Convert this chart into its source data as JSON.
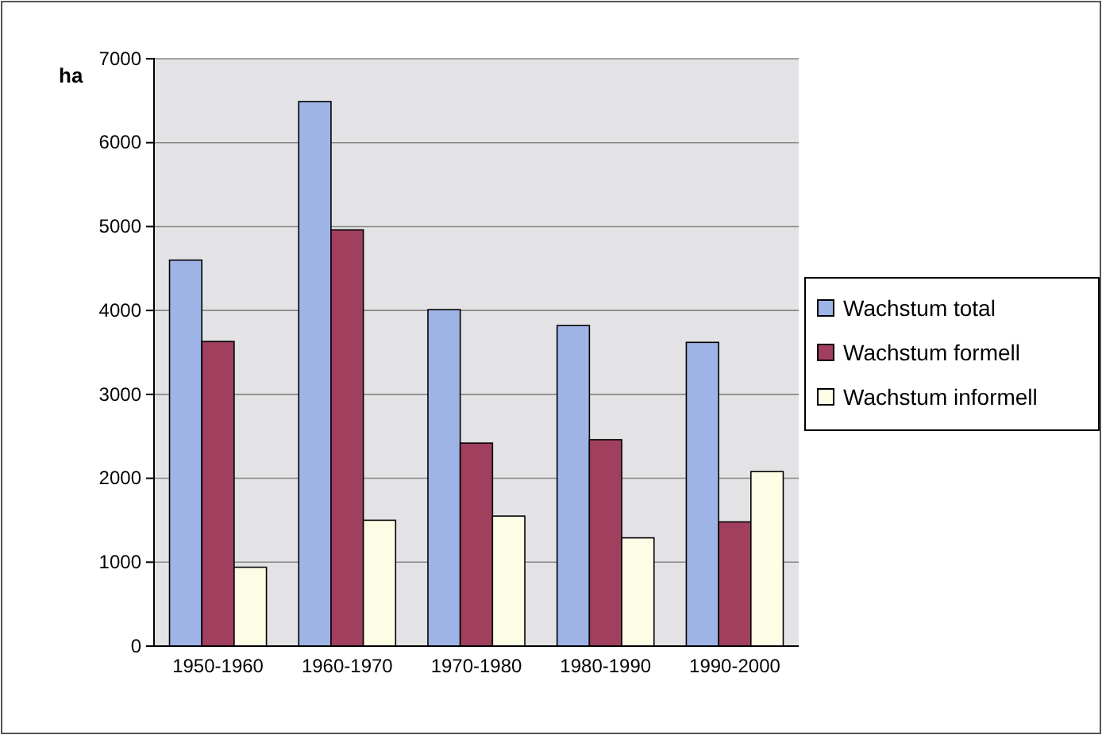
{
  "chart_data": {
    "type": "bar",
    "ylabel": "ha",
    "categories": [
      "1950-1960",
      "1960-1970",
      "1970-1980",
      "1980-1990",
      "1990-2000"
    ],
    "series": [
      {
        "name": "Wachstum total",
        "color": "#9fb4e6",
        "values": [
          4600,
          6490,
          4010,
          3820,
          3620
        ]
      },
      {
        "name": "Wachstum formell",
        "color": "#a0405e",
        "values": [
          3630,
          4960,
          2420,
          2460,
          1480
        ]
      },
      {
        "name": "Wachstum informell",
        "color": "#fdfde6",
        "values": [
          940,
          1500,
          1550,
          1290,
          2080
        ]
      }
    ],
    "ylim": [
      0,
      7000
    ],
    "yticks": [
      0,
      1000,
      2000,
      3000,
      4000,
      5000,
      6000,
      7000
    ],
    "grid": "y",
    "legend": "right"
  }
}
